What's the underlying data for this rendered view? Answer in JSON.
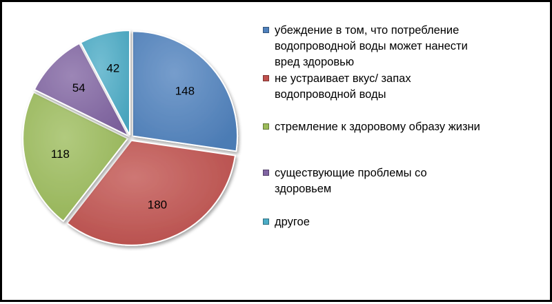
{
  "chart_data": {
    "type": "pie",
    "title": "",
    "categories": [
      "убеждение в том, что потребление\nводопроводной воды может нанести\nвред здоровью",
      "не устраивает вкус/ запах\nводопроводной воды",
      "стремление к здоровому образу жизни",
      "существующие проблемы со\nздоровьем",
      "другое"
    ],
    "values": [
      148,
      180,
      118,
      54,
      42
    ],
    "data_labels": [
      "148",
      "180",
      "118",
      "54",
      "42"
    ],
    "colors": [
      "#4f81bd",
      "#c0504d",
      "#9bbb59",
      "#8064a2",
      "#4bacc6"
    ],
    "legend_position": "right",
    "exploded": true,
    "start_angle": "top, clockwise"
  }
}
